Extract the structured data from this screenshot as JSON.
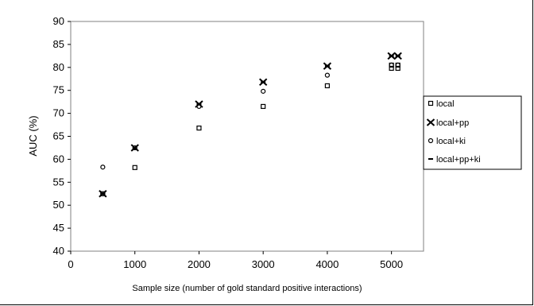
{
  "chart_data": {
    "type": "scatter",
    "title": "",
    "xlabel": "Sample size (number of gold standard positive interactions)",
    "ylabel": "AUC (%)",
    "xlim": [
      0,
      5500
    ],
    "ylim": [
      40,
      90
    ],
    "x_ticks": [
      0,
      1000,
      2000,
      3000,
      4000,
      5000
    ],
    "y_ticks": [
      40,
      45,
      50,
      55,
      60,
      65,
      70,
      75,
      80,
      85,
      90
    ],
    "grid": false,
    "legend_position": "right",
    "series": [
      {
        "name": "local",
        "marker": "square",
        "points": [
          [
            500,
            52.5
          ],
          [
            1000,
            58.2
          ],
          [
            2000,
            66.8
          ],
          [
            3000,
            71.5
          ],
          [
            4000,
            76.0
          ],
          [
            5000,
            79.8
          ],
          [
            5000,
            80.5
          ],
          [
            5100,
            79.8
          ],
          [
            5100,
            80.5
          ]
        ]
      },
      {
        "name": "local+pp",
        "marker": "x",
        "points": [
          [
            500,
            52.5
          ],
          [
            1000,
            62.5
          ],
          [
            2000,
            72.0
          ],
          [
            3000,
            76.8
          ],
          [
            4000,
            80.3
          ],
          [
            5000,
            82.5
          ],
          [
            5100,
            82.5
          ]
        ]
      },
      {
        "name": "local+ki",
        "marker": "circle",
        "points": [
          [
            500,
            58.3
          ],
          [
            1000,
            62.5
          ],
          [
            2000,
            71.5
          ],
          [
            3000,
            74.8
          ],
          [
            4000,
            78.3
          ],
          [
            5000,
            80.5
          ],
          [
            5100,
            80.5
          ]
        ]
      },
      {
        "name": "local+pp+ki",
        "marker": "dash",
        "points": [
          [
            500,
            52.5
          ],
          [
            1000,
            62.2
          ],
          [
            2000,
            72.0
          ],
          [
            3000,
            76.8
          ],
          [
            4000,
            80.3
          ],
          [
            5000,
            82.5
          ],
          [
            5100,
            82.5
          ]
        ]
      }
    ]
  }
}
